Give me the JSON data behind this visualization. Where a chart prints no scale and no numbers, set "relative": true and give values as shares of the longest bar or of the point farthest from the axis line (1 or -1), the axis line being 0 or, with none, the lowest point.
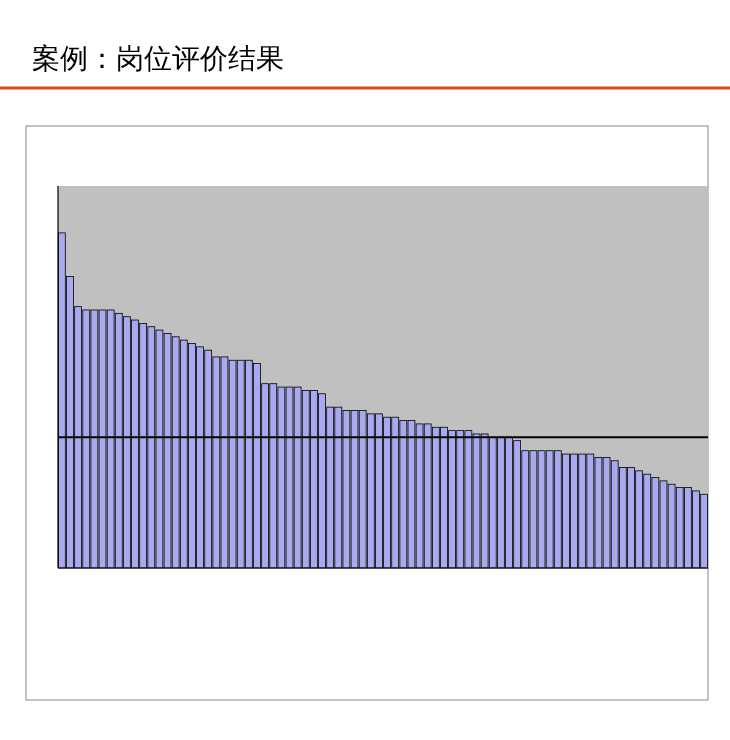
{
  "chart_data": {
    "type": "bar",
    "title": "案例：岗位评价结果",
    "relative": true,
    "color": "#a9a9f0",
    "categories": [
      null,
      null,
      null,
      null,
      null,
      null,
      null,
      null,
      null,
      null,
      null,
      null,
      null,
      null,
      null,
      null,
      null,
      null,
      null,
      null,
      null,
      null,
      null,
      null,
      null,
      null,
      null,
      null,
      null,
      null,
      null,
      null,
      null,
      null,
      null,
      null,
      null,
      null,
      null,
      null,
      null,
      null,
      null,
      null,
      null,
      null,
      null,
      null,
      null,
      null,
      null,
      null,
      null,
      null,
      null,
      null,
      null,
      null,
      null,
      null,
      null,
      null,
      null,
      null,
      null,
      null,
      null,
      null,
      null,
      null,
      null,
      null,
      null,
      null,
      null,
      null,
      null,
      null,
      null,
      null
    ],
    "values": [
      1.0,
      0.87,
      0.78,
      0.77,
      0.77,
      0.77,
      0.77,
      0.76,
      0.75,
      0.74,
      0.73,
      0.72,
      0.71,
      0.7,
      0.69,
      0.68,
      0.67,
      0.66,
      0.65,
      0.63,
      0.63,
      0.62,
      0.62,
      0.62,
      0.61,
      0.55,
      0.55,
      0.54,
      0.54,
      0.54,
      0.53,
      0.53,
      0.52,
      0.48,
      0.48,
      0.47,
      0.47,
      0.47,
      0.46,
      0.46,
      0.45,
      0.45,
      0.44,
      0.44,
      0.43,
      0.43,
      0.42,
      0.42,
      0.41,
      0.41,
      0.41,
      0.4,
      0.4,
      0.39,
      0.39,
      0.39,
      0.38,
      0.35,
      0.35,
      0.35,
      0.35,
      0.35,
      0.34,
      0.34,
      0.34,
      0.34,
      0.33,
      0.33,
      0.32,
      0.3,
      0.3,
      0.29,
      0.28,
      0.27,
      0.26,
      0.25,
      0.24,
      0.24,
      0.23,
      0.22
    ],
    "ref_lines": [
      {
        "axis": "y",
        "value": 0.39,
        "color": "#000000"
      }
    ]
  }
}
